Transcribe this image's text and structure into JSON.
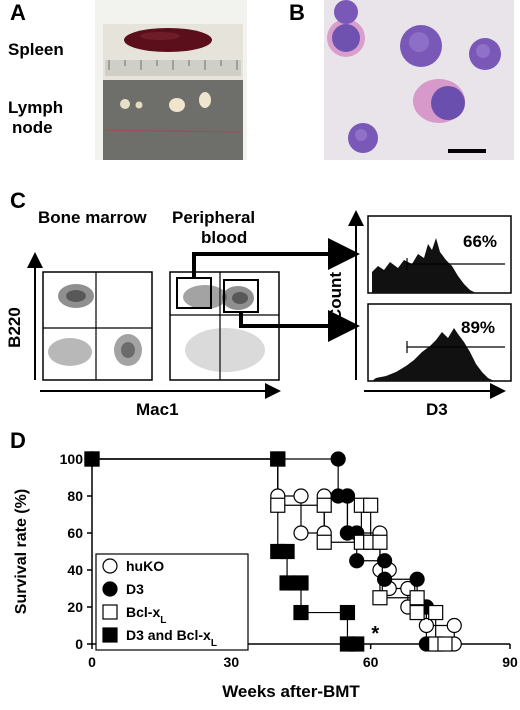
{
  "panels": {
    "a": {
      "letter": "A",
      "spleen_label": "Spleen",
      "lymph_label_line1": "Lymph",
      "lymph_label_line2": "node"
    },
    "b": {
      "letter": "B"
    },
    "c": {
      "letter": "C",
      "bone_marrow_label": "Bone marrow",
      "peripheral_label_line1": "Peripheral",
      "peripheral_label_line2": "blood",
      "y_axis_label": "B220",
      "x_axis_label": "Mac1",
      "count_label": "Count",
      "d3_label": "D3",
      "hist_top_pct": "66%",
      "hist_bottom_pct": "89%"
    },
    "d": {
      "letter": "D"
    }
  },
  "colors": {
    "spleen": "#5a0f1a",
    "cell_purple": "#7a58b8",
    "cell_pink": "#d48cc4",
    "photo_bg": "#e9e4e9"
  },
  "chart_data": {
    "type": "line",
    "step": true,
    "xlabel": "Weeks after-BMT",
    "ylabel": "Survival rate (%)",
    "xlim": [
      0,
      90
    ],
    "ylim": [
      0,
      100
    ],
    "xticks": [
      0,
      30,
      60,
      90
    ],
    "yticks": [
      0,
      20,
      40,
      60,
      80,
      100
    ],
    "annotation": "*",
    "annotation_x": 61,
    "annotation_y": 5,
    "series": [
      {
        "name": "huKO",
        "marker": "open-circle",
        "points": [
          [
            0,
            100
          ],
          [
            40,
            100
          ],
          [
            40,
            80
          ],
          [
            45,
            80
          ],
          [
            45,
            60
          ],
          [
            50,
            60
          ],
          [
            50,
            80
          ],
          [
            55,
            80
          ],
          [
            55,
            60
          ],
          [
            62,
            60
          ],
          [
            62,
            40
          ],
          [
            64,
            40
          ],
          [
            64,
            30
          ],
          [
            68,
            30
          ],
          [
            68,
            20
          ],
          [
            72,
            20
          ],
          [
            72,
            10
          ],
          [
            78,
            10
          ],
          [
            78,
            0
          ]
        ]
      },
      {
        "name": "D3",
        "marker": "filled-circle",
        "points": [
          [
            0,
            100
          ],
          [
            53,
            100
          ],
          [
            53,
            80
          ],
          [
            55,
            80
          ],
          [
            55,
            60
          ],
          [
            57,
            60
          ],
          [
            57,
            45
          ],
          [
            63,
            45
          ],
          [
            63,
            35
          ],
          [
            70,
            35
          ],
          [
            70,
            20
          ],
          [
            72,
            20
          ],
          [
            72,
            0
          ],
          [
            74,
            0
          ]
        ]
      },
      {
        "name": "Bcl-xL",
        "marker": "open-square",
        "points": [
          [
            0,
            100
          ],
          [
            40,
            100
          ],
          [
            40,
            75
          ],
          [
            50,
            75
          ],
          [
            50,
            55
          ],
          [
            58,
            55
          ],
          [
            58,
            75
          ],
          [
            60,
            75
          ],
          [
            60,
            55
          ],
          [
            62,
            55
          ],
          [
            62,
            25
          ],
          [
            70,
            25
          ],
          [
            70,
            17
          ],
          [
            74,
            17
          ],
          [
            74,
            0
          ],
          [
            76,
            0
          ]
        ]
      },
      {
        "name": "D3 and Bcl-xL",
        "marker": "filled-square",
        "points": [
          [
            0,
            100
          ],
          [
            40,
            100
          ],
          [
            40,
            50
          ],
          [
            42,
            50
          ],
          [
            42,
            33
          ],
          [
            45,
            33
          ],
          [
            45,
            17
          ],
          [
            55,
            17
          ],
          [
            55,
            0
          ],
          [
            57,
            0
          ]
        ]
      }
    ],
    "legend": [
      {
        "label": "huKO",
        "marker": "open-circle"
      },
      {
        "label": "D3",
        "marker": "filled-circle"
      },
      {
        "label": "Bcl-x",
        "sub": "L",
        "marker": "open-square"
      },
      {
        "label": "D3 and Bcl-x",
        "sub": "L",
        "marker": "filled-square"
      }
    ]
  }
}
